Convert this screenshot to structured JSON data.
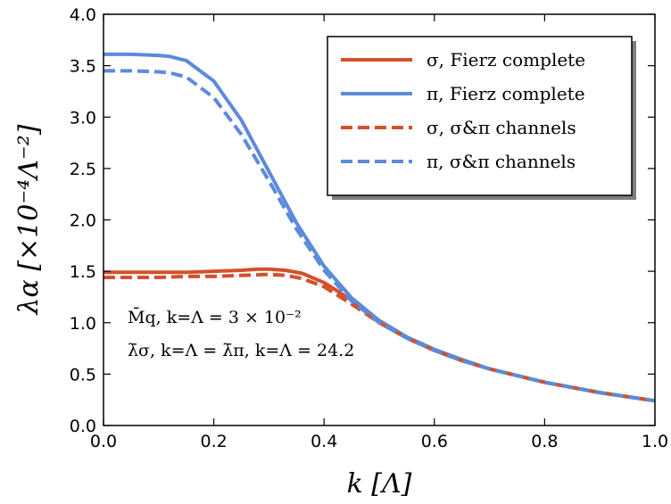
{
  "chart_data": {
    "type": "line",
    "title": "",
    "xlabel": "k [Λ]",
    "ylabel": "λα [×10⁻⁴Λ⁻²]",
    "xlim": [
      0.0,
      1.0
    ],
    "ylim": [
      0.0,
      4.0
    ],
    "x_ticks": [
      "0.0",
      "0.2",
      "0.4",
      "0.6",
      "0.8",
      "1.0"
    ],
    "y_ticks": [
      "0.0",
      "0.5",
      "1.0",
      "1.5",
      "2.0",
      "2.5",
      "3.0",
      "3.5",
      "4.0"
    ],
    "grid": false,
    "legend_position": "top-right",
    "annotations": [
      "M̄q, k=Λ = 3 × 10⁻²",
      "λ̄σ, k=Λ = λ̄π, k=Λ = 24.2"
    ],
    "series": [
      {
        "name": "σ,  Fierz complete",
        "color": "#D4502B",
        "style": "solid",
        "x": [
          0.0,
          0.05,
          0.1,
          0.15,
          0.2,
          0.25,
          0.28,
          0.3,
          0.33,
          0.36,
          0.4,
          0.45,
          0.5,
          0.55,
          0.6,
          0.65,
          0.7,
          0.8,
          0.9,
          1.0
        ],
        "y": [
          1.49,
          1.49,
          1.49,
          1.49,
          1.5,
          1.51,
          1.52,
          1.52,
          1.51,
          1.48,
          1.39,
          1.22,
          1.02,
          0.86,
          0.74,
          0.64,
          0.55,
          0.42,
          0.32,
          0.24
        ]
      },
      {
        "name": "π,  Fierz complete",
        "color": "#5B8BD9",
        "style": "solid",
        "x": [
          0.0,
          0.05,
          0.1,
          0.12,
          0.15,
          0.2,
          0.25,
          0.3,
          0.35,
          0.4,
          0.45,
          0.5,
          0.55,
          0.6,
          0.65,
          0.7,
          0.8,
          0.9,
          1.0
        ],
        "y": [
          3.61,
          3.61,
          3.6,
          3.59,
          3.55,
          3.35,
          2.97,
          2.47,
          1.97,
          1.55,
          1.24,
          1.02,
          0.86,
          0.74,
          0.64,
          0.55,
          0.42,
          0.32,
          0.24
        ]
      },
      {
        "name": "σ,  σ&π channels",
        "color": "#D4502B",
        "style": "dashed",
        "x": [
          0.0,
          0.05,
          0.1,
          0.15,
          0.2,
          0.25,
          0.3,
          0.33,
          0.36,
          0.4,
          0.45,
          0.5,
          0.55,
          0.6,
          0.65,
          0.7,
          0.8,
          0.9,
          1.0
        ],
        "y": [
          1.44,
          1.44,
          1.44,
          1.45,
          1.45,
          1.46,
          1.47,
          1.46,
          1.43,
          1.35,
          1.18,
          1.0,
          0.85,
          0.73,
          0.63,
          0.55,
          0.42,
          0.32,
          0.24
        ]
      },
      {
        "name": "π,  σ&π channels",
        "color": "#5B8BD9",
        "style": "dashed",
        "x": [
          0.0,
          0.05,
          0.1,
          0.12,
          0.15,
          0.2,
          0.25,
          0.3,
          0.35,
          0.4,
          0.45,
          0.5,
          0.55,
          0.6,
          0.65,
          0.7,
          0.8,
          0.9,
          1.0
        ],
        "y": [
          3.45,
          3.45,
          3.44,
          3.43,
          3.39,
          3.19,
          2.83,
          2.38,
          1.91,
          1.51,
          1.21,
          1.0,
          0.85,
          0.73,
          0.63,
          0.55,
          0.42,
          0.32,
          0.24
        ]
      }
    ]
  }
}
